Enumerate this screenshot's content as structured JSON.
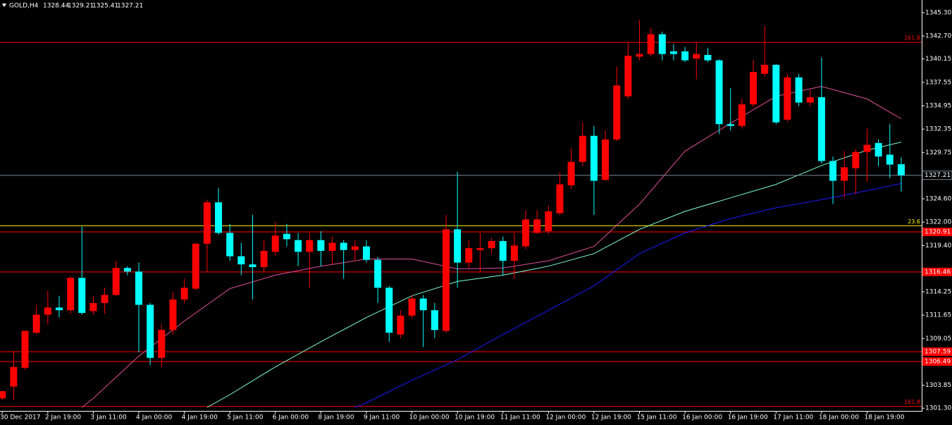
{
  "chart_data": {
    "type": "candlestick",
    "symbol": "GOLD,H4",
    "up_color": "#ff0000",
    "down_color": "#00ffff",
    "categories": [
      "30 Dec 2017",
      null,
      null,
      null,
      "2 Jan 19:00",
      null,
      null,
      null,
      "3 Jan 11:00",
      null,
      null,
      null,
      "4 Jan 00:00",
      null,
      null,
      null,
      "4 Jan 19:00",
      null,
      null,
      null,
      "5 Jan 11:00",
      null,
      null,
      null,
      "6 Jan 00:00",
      null,
      null,
      null,
      "8 Jan 19:00",
      null,
      null,
      null,
      "9 Jan 11:00",
      null,
      null,
      null,
      "10 Jan 00:00",
      null,
      null,
      null,
      "10 Jan 19:00",
      null,
      null,
      null,
      "11 Jan 11:00",
      null,
      null,
      null,
      "12 Jan 00:00",
      null,
      null,
      null,
      "12 Jan 19:00",
      null,
      null,
      null,
      "15 Jan 11:00",
      null,
      null,
      null,
      "16 Jan 00:00",
      null,
      null,
      null,
      "16 Jan 19:00",
      null,
      null,
      null,
      "17 Jan 11:00",
      null,
      null,
      null,
      "18 Jan 00:00",
      null,
      null,
      null,
      "18 Jan 19:00",
      null,
      null,
      null
    ],
    "open": [
      1302.4,
      1303.7,
      1305.8,
      1309.7,
      1311.7,
      1312.5,
      1312.2,
      1315.8,
      1312.1,
      1313.0,
      1313.9,
      1316.9,
      1316.5,
      1312.8,
      1306.9,
      1310.0,
      1313.4,
      1314.6,
      1319.6,
      1324.2,
      1320.8,
      1318.2,
      1317.3,
      1317.0,
      1318.7,
      1320.7,
      1320.0,
      1318.7,
      1320.0,
      1318.8,
      1319.7,
      1318.9,
      1319.3,
      1317.8,
      1314.7,
      1309.5,
      1311.6,
      1313.5,
      1312.2,
      1309.9,
      1321.2,
      1317.5,
      1318.9,
      1319.1,
      1319.9,
      1317.7,
      1319.3,
      1320.8,
      1321.0,
      1323.0,
      1326.1,
      1328.7,
      1331.6,
      1326.7,
      1331.2,
      1336.0,
      1340.4,
      1340.7,
      1342.9,
      1341.0,
      1341.0,
      1340.2,
      1340.6,
      1340.0,
      1332.9,
      1332.7,
      1335.1,
      1338.5,
      1339.5,
      1333.4,
      1338.1,
      1335.3,
      1335.9,
      1328.8,
      1326.6,
      1328.0,
      1329.8,
      1330.8,
      1329.5,
      1328.44
    ],
    "high": [
      1303.2,
      1307.7,
      1309.9,
      1312.8,
      1314.4,
      1313.8,
      1316.0,
      1321.5,
      1313.8,
      1314.7,
      1317.7,
      1317.1,
      1317.5,
      1313.0,
      1310.6,
      1314.2,
      1315.7,
      1319.7,
      1324.5,
      1325.8,
      1321.8,
      1319.7,
      1322.8,
      1320.0,
      1322.0,
      1321.8,
      1320.8,
      1320.8,
      1321.0,
      1320.4,
      1320.0,
      1320.0,
      1320.0,
      1318.1,
      1314.9,
      1312.2,
      1313.9,
      1313.9,
      1313.0,
      1322.8,
      1327.6,
      1320.0,
      1320.8,
      1320.2,
      1320.4,
      1320.8,
      1323.3,
      1323.3,
      1323.8,
      1327.5,
      1330.2,
      1333.1,
      1332.7,
      1332.2,
      1339.3,
      1342.0,
      1344.5,
      1343.6,
      1343.2,
      1341.8,
      1341.5,
      1342.0,
      1341.4,
      1340.1,
      1336.9,
      1335.7,
      1340.0,
      1343.8,
      1339.6,
      1338.5,
      1338.5,
      1336.7,
      1340.3,
      1329.3,
      1329.9,
      1330.1,
      1332.4,
      1331.2,
      1332.9,
      1329.21
    ],
    "low": [
      1302.2,
      1302.2,
      1305.6,
      1309.5,
      1310.6,
      1311.4,
      1311.8,
      1311.7,
      1311.7,
      1311.8,
      1313.8,
      1316.1,
      1307.5,
      1306.1,
      1305.9,
      1309.5,
      1313.0,
      1314.4,
      1316.5,
      1320.6,
      1317.7,
      1316.1,
      1313.4,
      1316.5,
      1318.3,
      1319.3,
      1317.1,
      1314.7,
      1317.1,
      1317.3,
      1315.7,
      1317.7,
      1317.5,
      1313.0,
      1308.7,
      1309.1,
      1311.3,
      1308.1,
      1309.1,
      1309.7,
      1314.7,
      1316.9,
      1316.5,
      1318.5,
      1316.1,
      1315.7,
      1319.0,
      1320.7,
      1320.7,
      1322.8,
      1325.7,
      1328.3,
      1322.8,
      1326.6,
      1331.0,
      1335.7,
      1340.0,
      1340.4,
      1340.0,
      1340.0,
      1339.8,
      1337.9,
      1339.8,
      1331.8,
      1332.2,
      1332.4,
      1334.8,
      1338.2,
      1332.9,
      1333.2,
      1334.9,
      1334.9,
      1328.5,
      1324.0,
      1324.7,
      1325.1,
      1326.5,
      1328.2,
      1326.9,
      1325.41
    ],
    "close": [
      1303.2,
      1305.9,
      1309.9,
      1311.7,
      1312.5,
      1312.2,
      1315.8,
      1311.9,
      1313.0,
      1313.9,
      1316.9,
      1316.5,
      1312.8,
      1306.9,
      1310.0,
      1313.4,
      1314.7,
      1319.6,
      1324.2,
      1320.8,
      1318.2,
      1317.3,
      1317.0,
      1318.8,
      1320.5,
      1320.1,
      1318.7,
      1320.0,
      1318.8,
      1319.7,
      1318.9,
      1319.3,
      1317.8,
      1314.7,
      1309.7,
      1311.6,
      1313.5,
      1312.2,
      1310.0,
      1321.2,
      1317.5,
      1319.1,
      1319.1,
      1319.9,
      1317.7,
      1319.4,
      1322.3,
      1322.3,
      1323.2,
      1326.2,
      1328.7,
      1331.6,
      1326.6,
      1331.2,
      1337.2,
      1340.5,
      1340.7,
      1342.9,
      1340.7,
      1340.7,
      1340.0,
      1340.7,
      1340.0,
      1332.9,
      1332.7,
      1335.1,
      1338.7,
      1339.5,
      1333.1,
      1338.1,
      1335.3,
      1335.9,
      1328.8,
      1326.6,
      1328.1,
      1329.8,
      1330.6,
      1329.3,
      1328.4,
      1327.21
    ],
    "overlays": [
      {
        "color": "#e0509a",
        "x": [
          7,
          8,
          12,
          16,
          20,
          24,
          28,
          32,
          36,
          40,
          44,
          48,
          52,
          56,
          60,
          64,
          68,
          72,
          76,
          79
        ],
        "values": [
          1301.4,
          1302.4,
          1307.1,
          1311.0,
          1314.6,
          1316.1,
          1317.1,
          1317.9,
          1317.9,
          1316.8,
          1316.9,
          1317.7,
          1319.3,
          1324.0,
          1329.9,
          1333.0,
          1336.0,
          1337.1,
          1335.7,
          1333.5
        ]
      },
      {
        "color": "#7fffd4",
        "x": [
          18,
          20,
          24,
          28,
          32,
          36,
          40,
          44,
          48,
          52,
          56,
          60,
          64,
          68,
          72,
          76,
          79
        ],
        "values": [
          1301.4,
          1302.8,
          1305.9,
          1308.7,
          1311.4,
          1313.8,
          1315.4,
          1316.1,
          1317.1,
          1318.5,
          1321.2,
          1323.2,
          1324.7,
          1326.2,
          1328.3,
          1330.0,
          1330.9
        ]
      },
      {
        "color": "#1a1aff",
        "x": [
          31,
          32,
          36,
          40,
          44,
          48,
          52,
          56,
          60,
          64,
          68,
          72,
          76,
          79
        ],
        "values": [
          1301.4,
          1301.9,
          1304.4,
          1306.7,
          1309.5,
          1312.2,
          1314.9,
          1318.5,
          1320.8,
          1322.4,
          1323.6,
          1324.5,
          1325.5,
          1326.3
        ]
      }
    ],
    "levels": [
      {
        "value": 1342.0,
        "label": "261.8",
        "color": "#ff0000"
      },
      {
        "value": 1321.6,
        "label": "23.6",
        "color": "#ffff00"
      },
      {
        "value": 1301.5,
        "label": "161.8",
        "color": "#ff0000"
      }
    ],
    "price_lines": [
      1320.91,
      1316.46,
      1307.59,
      1306.49
    ],
    "price_line_color": "#ff0000",
    "current_line_color": "#778899",
    "xlim": [
      -0.2,
      80.8
    ],
    "ylim": [
      1301.0,
      1346.71
    ],
    "yticks": [
      {
        "value": 1345.3,
        "label": "1345.30"
      },
      {
        "value": 1342.7,
        "label": "1342.70"
      },
      {
        "value": 1340.15,
        "label": "1340.15"
      },
      {
        "value": 1337.55,
        "label": "1337.55"
      },
      {
        "value": 1334.95,
        "label": "1334.95"
      },
      {
        "value": 1332.35,
        "label": "1332.35"
      },
      {
        "value": 1329.75,
        "label": "1329.75"
      },
      {
        "value": 1324.6,
        "label": "1324.60"
      },
      {
        "value": 1322.0,
        "label": "1322.00"
      },
      {
        "value": 1319.4,
        "label": "1319.40"
      },
      {
        "value": 1314.25,
        "label": "1314.25"
      },
      {
        "value": 1311.65,
        "label": "1311.65"
      },
      {
        "value": 1309.05,
        "label": "1309.05"
      },
      {
        "value": 1303.85,
        "label": "1303.85"
      },
      {
        "value": 1301.3,
        "label": "1301.30"
      }
    ]
  }
}
